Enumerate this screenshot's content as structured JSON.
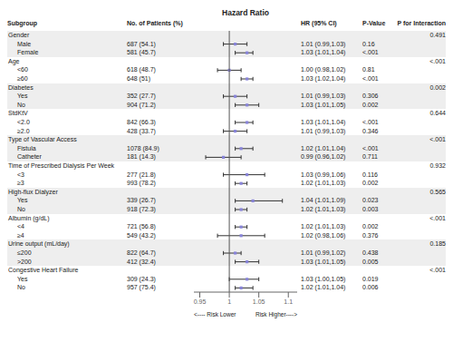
{
  "chart_data": {
    "type": "forest",
    "title": "Hazard Ratio",
    "columns": [
      "Subgroup",
      "No. of Patients (%)",
      "HR (95% CI)",
      "P-Value",
      "P for Interaction"
    ],
    "annotations": [
      "<---- Risk Lower",
      "Risk Higher---->"
    ],
    "xlim": [
      0.94,
      1.115
    ],
    "xticks": [
      0.95,
      1,
      1.05,
      1.1
    ],
    "reference_x": 1,
    "rows": [
      {
        "label": "Gender",
        "p_int": "0.491"
      },
      {
        "label": "Male",
        "n": "687 (54.1)",
        "hr": 1.01,
        "ci_lo": 0.99,
        "ci_hi": 1.03,
        "hr_label": "1.01 (0.99,1.03)",
        "pval": "0.16"
      },
      {
        "label": "Female",
        "n": "581 (45.7)",
        "hr": 1.03,
        "ci_lo": 1.01,
        "ci_hi": 1.04,
        "hr_label": "1.03 (1.01,1.04)",
        "pval": "<.001"
      },
      {
        "label": "Age",
        "p_int": "<.001"
      },
      {
        "label": "<60",
        "n": "618 (48.7)",
        "hr": 1.0,
        "ci_lo": 0.98,
        "ci_hi": 1.02,
        "hr_label": "1.00 (0.98,1.02)",
        "pval": "0.81"
      },
      {
        "label": "≥60",
        "n": "648 (51)",
        "hr": 1.03,
        "ci_lo": 1.02,
        "ci_hi": 1.04,
        "hr_label": "1.03 (1.02,1.04)",
        "pval": "<.001"
      },
      {
        "label": "Diabetes",
        "p_int": "0.002"
      },
      {
        "label": "Yes",
        "n": "352 (27.7)",
        "hr": 1.01,
        "ci_lo": 0.99,
        "ci_hi": 1.03,
        "hr_label": "1.01 (0.99,1.03)",
        "pval": "0.306"
      },
      {
        "label": "No",
        "n": "904 (71.2)",
        "hr": 1.03,
        "ci_lo": 1.01,
        "ci_hi": 1.05,
        "hr_label": "1.03 (1.01,1.05)",
        "pval": "0.002"
      },
      {
        "label": "StdKtV",
        "p_int": "0.644"
      },
      {
        "label": "<2.0",
        "n": "842 (66.3)",
        "hr": 1.03,
        "ci_lo": 1.01,
        "ci_hi": 1.04,
        "hr_label": "1.03 (1.01,1.04)",
        "pval": "<.001"
      },
      {
        "label": "≥2.0",
        "n": "428 (33.7)",
        "hr": 1.01,
        "ci_lo": 0.99,
        "ci_hi": 1.03,
        "hr_label": "1.01 (0.99,1.03)",
        "pval": "0.346"
      },
      {
        "label": "Type of Vascular Access",
        "p_int": "<.001"
      },
      {
        "label": "Fistula",
        "n": "1078 (84.9)",
        "hr": 1.02,
        "ci_lo": 1.01,
        "ci_hi": 1.04,
        "hr_label": "1.02 (1.01,1.04)",
        "pval": "<.001"
      },
      {
        "label": "Catheter",
        "n": "181 (14.3)",
        "hr": 0.99,
        "ci_lo": 0.96,
        "ci_hi": 1.02,
        "hr_label": "0.99 (0.96,1.02)",
        "pval": "0.711"
      },
      {
        "label": "Time of Prescribed Dialysis Per Week",
        "p_int": "0.932"
      },
      {
        "label": "<3",
        "n": "277 (21.8)",
        "hr": 1.03,
        "ci_lo": 0.99,
        "ci_hi": 1.06,
        "hr_label": "1.03 (0.99,1.06)",
        "pval": "0.116"
      },
      {
        "label": "≥3",
        "n": "993 (78.2)",
        "hr": 1.02,
        "ci_lo": 1.01,
        "ci_hi": 1.03,
        "hr_label": "1.02 (1.01,1.03)",
        "pval": "0.002"
      },
      {
        "label": "High-flux Dialyzer",
        "p_int": "0.565"
      },
      {
        "label": "Yes",
        "n": "339 (26.7)",
        "hr": 1.04,
        "ci_lo": 1.01,
        "ci_hi": 1.09,
        "hr_label": "1.04 (1.01,1.09)",
        "pval": "0.023"
      },
      {
        "label": "No",
        "n": "918 (72.3)",
        "hr": 1.02,
        "ci_lo": 1.01,
        "ci_hi": 1.03,
        "hr_label": "1.02 (1.01,1.03)",
        "pval": "0.003"
      },
      {
        "label": "Albumin (g/dL)",
        "p_int": "<.001"
      },
      {
        "label": "<4",
        "n": "721 (56.8)",
        "hr": 1.02,
        "ci_lo": 1.01,
        "ci_hi": 1.03,
        "hr_label": "1.02 (1.01,1.03)",
        "pval": "0.002"
      },
      {
        "label": "≥4",
        "n": "549 (43.2)",
        "hr": 1.02,
        "ci_lo": 0.98,
        "ci_hi": 1.06,
        "hr_label": "1.02 (0.98,1.06)",
        "pval": "0.376"
      },
      {
        "label": "Urine output (mL/day)",
        "p_int": "0.185"
      },
      {
        "label": "≤200",
        "n": "822 (64.7)",
        "hr": 1.01,
        "ci_lo": 0.99,
        "ci_hi": 1.02,
        "hr_label": "1.01 (0.99,1.02)",
        "pval": "0.438"
      },
      {
        "label": ">200",
        "n": "412 (32.4)",
        "hr": 1.03,
        "ci_lo": 1.01,
        "ci_hi": 1.05,
        "hr_label": "1.03 (1.01,1.05)",
        "pval": "0.005"
      },
      {
        "label": "Congestive Heart Failure",
        "p_int": "<.001"
      },
      {
        "label": "Yes",
        "n": "309 (24.3)",
        "hr": 1.03,
        "ci_lo": 1.0,
        "ci_hi": 1.05,
        "hr_label": "1.03 (1.00,1.05)",
        "pval": "0.019"
      },
      {
        "label": "No",
        "n": "957 (75.4)",
        "hr": 1.02,
        "ci_lo": 1.01,
        "ci_hi": 1.04,
        "hr_label": "1.02 (1.01,1.04)",
        "pval": "0.006"
      }
    ]
  }
}
